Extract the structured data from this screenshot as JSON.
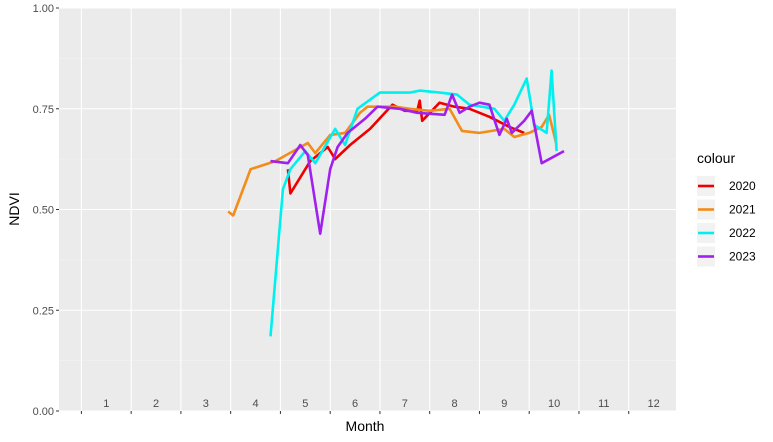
{
  "chart_data": {
    "type": "line",
    "title": "",
    "xlabel": "Month",
    "ylabel": "NDVI",
    "xlim": [
      0.55,
      12.95
    ],
    "ylim": [
      0,
      1
    ],
    "x_month_labels": [
      "1",
      "2",
      "3",
      "4",
      "5",
      "6",
      "7",
      "8",
      "9",
      "10",
      "11",
      "12"
    ],
    "y_ticks": [
      0.0,
      0.25,
      0.5,
      0.75,
      1.0
    ],
    "y_tick_labels": [
      "0.00",
      "0.25",
      "0.50",
      "0.75",
      "1.00"
    ],
    "grid": true,
    "legend": {
      "title": "colour",
      "placement": "right"
    },
    "series": [
      {
        "name": "2020",
        "color": "#ee0000",
        "points": [
          [
            5.15,
            0.6
          ],
          [
            5.2,
            0.54
          ],
          [
            5.6,
            0.62
          ],
          [
            5.95,
            0.655
          ],
          [
            6.1,
            0.625
          ],
          [
            6.4,
            0.66
          ],
          [
            6.8,
            0.7
          ],
          [
            7.25,
            0.76
          ],
          [
            7.5,
            0.745
          ],
          [
            7.75,
            0.745
          ],
          [
            7.8,
            0.77
          ],
          [
            7.85,
            0.72
          ],
          [
            8.2,
            0.765
          ],
          [
            8.5,
            0.755
          ],
          [
            8.8,
            0.75
          ],
          [
            9.2,
            0.73
          ],
          [
            9.6,
            0.705
          ],
          [
            9.9,
            0.69
          ]
        ]
      },
      {
        "name": "2021",
        "color": "#f28c1a",
        "points": [
          [
            3.95,
            0.495
          ],
          [
            4.05,
            0.485
          ],
          [
            4.4,
            0.6
          ],
          [
            4.9,
            0.62
          ],
          [
            5.55,
            0.665
          ],
          [
            5.7,
            0.64
          ],
          [
            6.0,
            0.685
          ],
          [
            6.3,
            0.69
          ],
          [
            6.6,
            0.74
          ],
          [
            6.75,
            0.755
          ],
          [
            7.3,
            0.755
          ],
          [
            7.6,
            0.75
          ],
          [
            8.0,
            0.745
          ],
          [
            8.4,
            0.75
          ],
          [
            8.65,
            0.695
          ],
          [
            9.0,
            0.69
          ],
          [
            9.5,
            0.7
          ],
          [
            9.7,
            0.68
          ],
          [
            10.0,
            0.69
          ],
          [
            10.25,
            0.705
          ],
          [
            10.4,
            0.735
          ],
          [
            10.55,
            0.66
          ]
        ]
      },
      {
        "name": "2022",
        "color": "#00f0f0",
        "points": [
          [
            4.8,
            0.185
          ],
          [
            5.05,
            0.55
          ],
          [
            5.2,
            0.6
          ],
          [
            5.5,
            0.645
          ],
          [
            5.7,
            0.615
          ],
          [
            6.1,
            0.7
          ],
          [
            6.3,
            0.66
          ],
          [
            6.55,
            0.75
          ],
          [
            7.0,
            0.79
          ],
          [
            7.6,
            0.79
          ],
          [
            7.8,
            0.795
          ],
          [
            8.2,
            0.79
          ],
          [
            8.55,
            0.785
          ],
          [
            8.8,
            0.76
          ],
          [
            9.3,
            0.75
          ],
          [
            9.5,
            0.72
          ],
          [
            9.7,
            0.76
          ],
          [
            9.95,
            0.825
          ],
          [
            10.1,
            0.71
          ],
          [
            10.35,
            0.69
          ],
          [
            10.45,
            0.845
          ],
          [
            10.55,
            0.645
          ]
        ]
      },
      {
        "name": "2023",
        "color": "#a020f0",
        "points": [
          [
            4.8,
            0.62
          ],
          [
            5.15,
            0.615
          ],
          [
            5.4,
            0.66
          ],
          [
            5.55,
            0.635
          ],
          [
            5.8,
            0.44
          ],
          [
            6.0,
            0.6
          ],
          [
            6.15,
            0.655
          ],
          [
            6.35,
            0.69
          ],
          [
            6.7,
            0.725
          ],
          [
            6.95,
            0.755
          ],
          [
            7.4,
            0.75
          ],
          [
            7.75,
            0.74
          ],
          [
            8.3,
            0.735
          ],
          [
            8.45,
            0.785
          ],
          [
            8.6,
            0.74
          ],
          [
            8.8,
            0.755
          ],
          [
            9.0,
            0.765
          ],
          [
            9.2,
            0.76
          ],
          [
            9.4,
            0.685
          ],
          [
            9.55,
            0.725
          ],
          [
            9.65,
            0.69
          ],
          [
            9.9,
            0.72
          ],
          [
            10.05,
            0.745
          ],
          [
            10.25,
            0.615
          ],
          [
            10.7,
            0.645
          ]
        ]
      }
    ]
  }
}
